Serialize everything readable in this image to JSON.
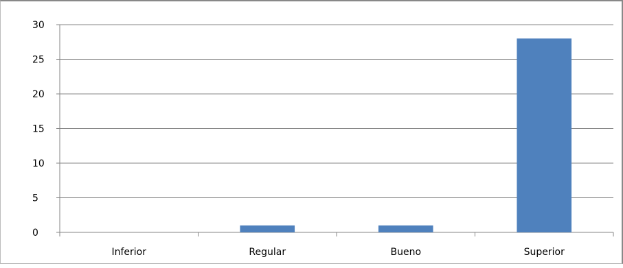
{
  "chart_data": {
    "type": "bar",
    "categories": [
      "Inferior",
      "Regular",
      "Bueno",
      "Superior"
    ],
    "values": [
      0,
      1,
      1,
      28
    ],
    "title": "",
    "xlabel": "",
    "ylabel": "",
    "ylim": [
      0,
      30
    ],
    "yticks": [
      "0",
      "5",
      "10",
      "15",
      "20",
      "25",
      "30"
    ],
    "grid": true,
    "legend": "none",
    "bar_color": "#4F81BD",
    "grid_color": "#868686"
  }
}
